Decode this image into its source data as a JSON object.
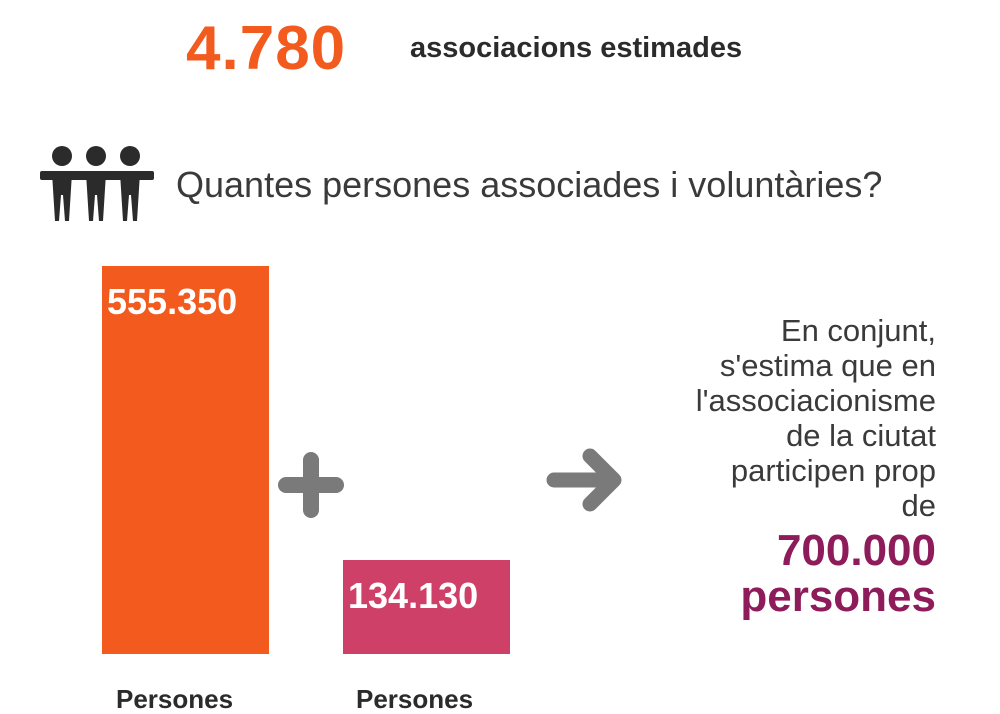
{
  "header": {
    "count": "4.780",
    "count_label": "associacions estimades"
  },
  "question": "Quantes persones associades i voluntàries?",
  "icons": {
    "people": "people-group-icon",
    "plus": "plus-icon",
    "arrow": "arrow-right-icon"
  },
  "chart_data": {
    "type": "bar",
    "categories": [
      "Persones",
      "Persones"
    ],
    "values": [
      555350,
      134130
    ],
    "value_labels": [
      "555.350",
      "134.130"
    ],
    "colors": [
      "#f25a1e",
      "#cf4068"
    ],
    "ylim": [
      0,
      555350
    ],
    "grid": false
  },
  "summary": {
    "text_lines": [
      "En conjunt,",
      "s'estima que en",
      "l'associacionisme",
      "de la ciutat",
      "participen prop",
      "de"
    ],
    "total_number": "700.000",
    "total_unit": "persones"
  },
  "colors": {
    "accent": "#f25a1e",
    "secondary": "#cf4068",
    "highlight": "#8e1b5a",
    "icon_gray": "#7a7a7a",
    "text": "#2b2b2b"
  }
}
